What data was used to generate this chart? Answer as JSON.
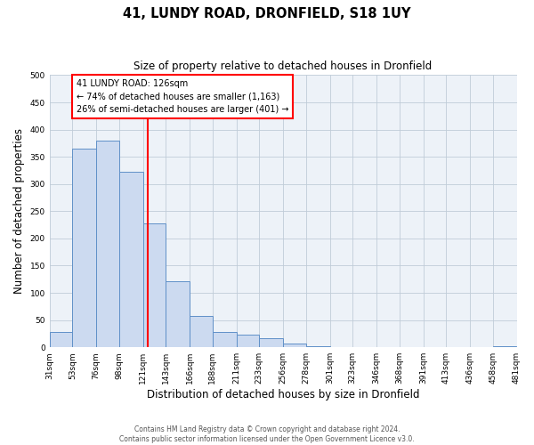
{
  "title_line1": "41, LUNDY ROAD, DRONFIELD, S18 1UY",
  "title_line2": "Size of property relative to detached houses in Dronfield",
  "xlabel": "Distribution of detached houses by size in Dronfield",
  "ylabel": "Number of detached properties",
  "bin_edges": [
    31,
    53,
    76,
    98,
    121,
    143,
    166,
    188,
    211,
    233,
    256,
    278,
    301,
    323,
    346,
    368,
    391,
    413,
    436,
    458,
    481
  ],
  "bin_labels": [
    "31sqm",
    "53sqm",
    "76sqm",
    "98sqm",
    "121sqm",
    "143sqm",
    "166sqm",
    "188sqm",
    "211sqm",
    "233sqm",
    "256sqm",
    "278sqm",
    "301sqm",
    "323sqm",
    "346sqm",
    "368sqm",
    "391sqm",
    "413sqm",
    "436sqm",
    "458sqm",
    "481sqm"
  ],
  "counts": [
    28,
    365,
    380,
    323,
    228,
    121,
    58,
    28,
    23,
    17,
    7,
    2,
    1,
    0,
    1,
    0,
    0,
    0,
    0,
    2
  ],
  "bar_facecolor": "#ccdaf0",
  "bar_edgecolor": "#6090c8",
  "property_line_x": 126,
  "annot_line1": "41 LUNDY ROAD: 126sqm",
  "annot_line2": "← 74% of detached houses are smaller (1,163)",
  "annot_line3": "26% of semi-detached houses are larger (401) →",
  "annotation_box_facecolor": "white",
  "annotation_box_edgecolor": "red",
  "vline_color": "red",
  "ylim": [
    0,
    500
  ],
  "yticks": [
    0,
    50,
    100,
    150,
    200,
    250,
    300,
    350,
    400,
    450,
    500
  ],
  "grid_color": "#c0ccd8",
  "background_color": "#edf2f8",
  "footer_line1": "Contains HM Land Registry data © Crown copyright and database right 2024.",
  "footer_line2": "Contains public sector information licensed under the Open Government Licence v3.0."
}
